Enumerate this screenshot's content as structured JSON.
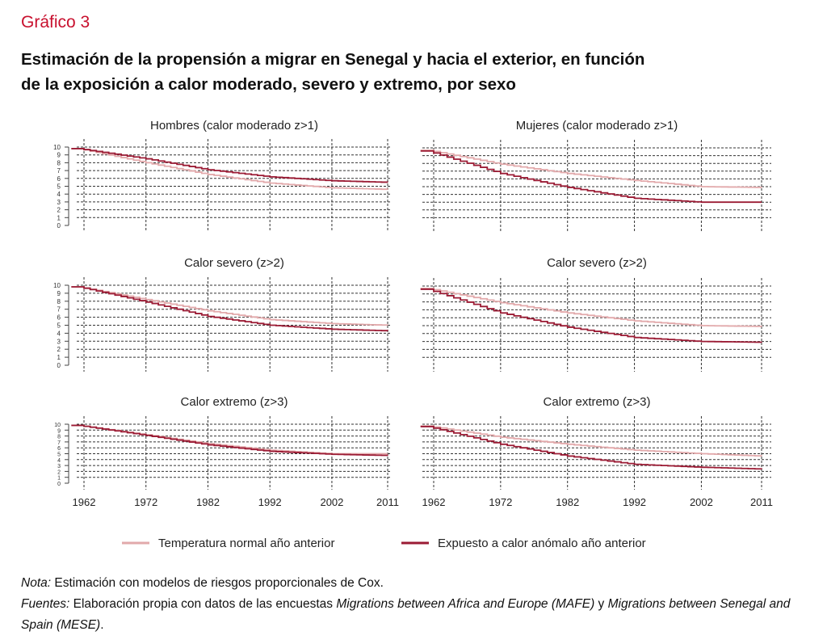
{
  "kicker": "Gráfico 3",
  "title_line1": "Estimación de la propensión a migrar en Senegal y hacia el exterior, en función",
  "title_line2": "de la exposición a calor moderado, severo y extremo, por sexo",
  "colors": {
    "normal": "#e2a9ab",
    "exposed": "#9b1b34",
    "kicker": "#c8102e"
  },
  "legend": {
    "normal": "Temperatura normal año anterior",
    "exposed": "Expuesto a calor anómalo año anterior"
  },
  "notes": {
    "nota_label": "Nota:",
    "nota_text": " Estimación con modelos de riesgos proporcionales de Cox.",
    "fuentes_label": "Fuentes:",
    "fuentes_text1": " Elaboración propia con datos de las encuestas ",
    "fuentes_italic1": "Migrations between Africa and Europe (MAFE)",
    "fuentes_text2": " y ",
    "fuentes_italic2": "Migrations between Senegal and Spain (MESE)",
    "fuentes_text3": "."
  },
  "chart_data": [
    {
      "type": "line",
      "title": "Hombres (calor moderado z>1)",
      "x": [
        1961,
        1972,
        1982,
        1992,
        2002,
        2011
      ],
      "ylim": [
        0,
        10
      ],
      "yticks": [
        0,
        1,
        2,
        3,
        4,
        5,
        6,
        7,
        8,
        9,
        10
      ],
      "xticks": [
        "1962",
        "1972",
        "1982",
        "1992",
        "2002",
        "2011"
      ],
      "series": [
        {
          "name": "Temperatura normal año anterior",
          "values": [
            9.8,
            8.0,
            6.5,
            5.4,
            4.8,
            4.6
          ]
        },
        {
          "name": "Expuesto a calor anómalo año anterior",
          "values": [
            9.8,
            8.5,
            7.1,
            6.2,
            5.7,
            5.5
          ]
        }
      ]
    },
    {
      "type": "line",
      "title": "Mujeres (calor moderado z>1)",
      "x": [
        1961,
        1972,
        1982,
        1992,
        2002,
        2011
      ],
      "ylim": [
        0,
        10
      ],
      "xticks": [
        "1962",
        "1972",
        "1982",
        "1992",
        "2002",
        "2011"
      ],
      "series": [
        {
          "name": "Temperatura normal año anterior",
          "values": [
            9.7,
            7.9,
            6.7,
            5.8,
            5.0,
            4.9
          ]
        },
        {
          "name": "Expuesto a calor anómalo año anterior",
          "values": [
            9.6,
            6.7,
            4.9,
            3.5,
            3.0,
            3.0
          ]
        }
      ]
    },
    {
      "type": "line",
      "title": "Calor severo (z>2)",
      "x": [
        1961,
        1972,
        1982,
        1992,
        2002,
        2011
      ],
      "ylim": [
        0,
        10
      ],
      "yticks": [
        0,
        1,
        2,
        3,
        4,
        5,
        6,
        7,
        8,
        9,
        10
      ],
      "xticks": [
        "1962",
        "1972",
        "1982",
        "1992",
        "2002",
        "2011"
      ],
      "series": [
        {
          "name": "Temperatura normal año anterior",
          "values": [
            9.8,
            8.2,
            6.8,
            5.7,
            5.2,
            5.0
          ]
        },
        {
          "name": "Expuesto a calor anómalo año anterior",
          "values": [
            9.8,
            7.9,
            6.1,
            5.0,
            4.5,
            4.3
          ]
        }
      ]
    },
    {
      "type": "line",
      "title": "Calor severo (z>2)",
      "x": [
        1961,
        1972,
        1982,
        1992,
        2002,
        2011
      ],
      "ylim": [
        0,
        10
      ],
      "xticks": [
        "1962",
        "1972",
        "1982",
        "1992",
        "2002",
        "2011"
      ],
      "series": [
        {
          "name": "Temperatura normal año anterior",
          "values": [
            9.7,
            7.9,
            6.6,
            5.6,
            5.0,
            4.9
          ]
        },
        {
          "name": "Expuesto a calor anómalo año anterior",
          "values": [
            9.6,
            6.6,
            4.8,
            3.5,
            3.0,
            2.9
          ]
        }
      ]
    },
    {
      "type": "line",
      "title": "Calor extremo (z>3)",
      "x": [
        1961,
        1972,
        1982,
        1992,
        2002,
        2011
      ],
      "ylim": [
        0,
        10
      ],
      "yticks": [
        0,
        1,
        2,
        3,
        4,
        5,
        6,
        7,
        8,
        9,
        10
      ],
      "xticks": [
        "1962",
        "1972",
        "1982",
        "1992",
        "2002",
        "2011"
      ],
      "series": [
        {
          "name": "Temperatura normal año anterior",
          "values": [
            9.8,
            8.2,
            6.7,
            5.6,
            5.0,
            5.0
          ]
        },
        {
          "name": "Expuesto a calor anómalo año anterior",
          "values": [
            9.8,
            8.1,
            6.5,
            5.4,
            4.9,
            4.7
          ]
        }
      ]
    },
    {
      "type": "line",
      "title": "Calor extremo (z>3)",
      "x": [
        1961,
        1972,
        1982,
        1992,
        2002,
        2011
      ],
      "ylim": [
        0,
        10
      ],
      "xticks": [
        "1962",
        "1972",
        "1982",
        "1992",
        "2002",
        "2011"
      ],
      "series": [
        {
          "name": "Temperatura normal año anterior",
          "values": [
            9.7,
            7.8,
            6.6,
            5.6,
            5.0,
            4.6
          ]
        },
        {
          "name": "Expuesto a calor anómalo año anterior",
          "values": [
            9.6,
            6.6,
            4.6,
            3.2,
            2.7,
            2.4
          ]
        }
      ]
    }
  ]
}
